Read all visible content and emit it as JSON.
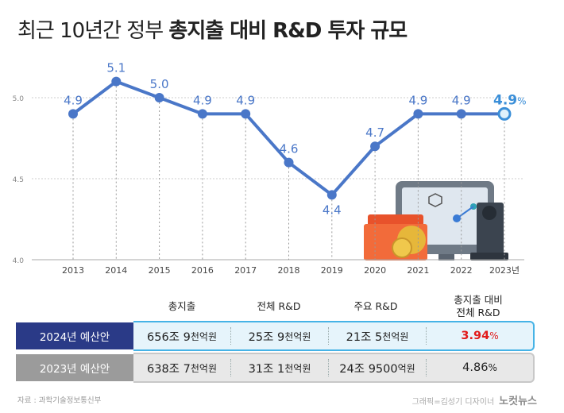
{
  "title_part1": "최근 10년간 정부",
  "title_part2": "총지출 대비 R&D 투자 규모",
  "chart_data": {
    "type": "line",
    "x": [
      "2013",
      "2014",
      "2015",
      "2016",
      "2017",
      "2018",
      "2019",
      "2020",
      "2021",
      "2022",
      "2023년"
    ],
    "values": [
      4.9,
      5.1,
      5.0,
      4.9,
      4.9,
      4.6,
      4.4,
      4.7,
      4.9,
      4.9,
      4.9
    ],
    "data_labels": [
      "4.9",
      "5.1",
      "5.0",
      "4.9",
      "4.9",
      "4.6",
      "4.4",
      "4.7",
      "4.9",
      "4.9",
      "4.9"
    ],
    "last_label_unit": "%",
    "yticks": [
      "5.0",
      "4.5",
      "4.0"
    ],
    "ylim": [
      4.0,
      5.0
    ],
    "line_color": "#4a77c8",
    "highlight_color": "#3b8fd8"
  },
  "table": {
    "headers": [
      "총지출",
      "전체 R&D",
      "주요 R&D",
      "총지출 대비",
      "전체 R&D"
    ],
    "rows": [
      {
        "label": "2024년 예산안",
        "cells": [
          [
            "656조 9",
            "천억원"
          ],
          [
            "25조 9",
            "천억원"
          ],
          [
            "21조 5",
            "천억원"
          ],
          [
            "3.94",
            "%"
          ]
        ],
        "label_bg": "#2a3a87",
        "cell_bg": "#e6f4fb",
        "border": "#46b3e6",
        "last_color": "#e21b1b"
      },
      {
        "label": "2023년 예산안",
        "cells": [
          [
            "638조 7",
            "천억원"
          ],
          [
            "31조 1",
            "천억원"
          ],
          [
            "24조 9500",
            "억원"
          ],
          [
            "4.86",
            "%"
          ]
        ],
        "label_bg": "#9b9b9b",
        "cell_bg": "#e8e8e8",
        "border": "#c8c8c8",
        "last_color": "#222222"
      }
    ]
  },
  "footer": {
    "source": "자료 : 과학기술정보통신부",
    "credit": "그래픽=김성기 디자이너",
    "brand": "노컷뉴스"
  }
}
